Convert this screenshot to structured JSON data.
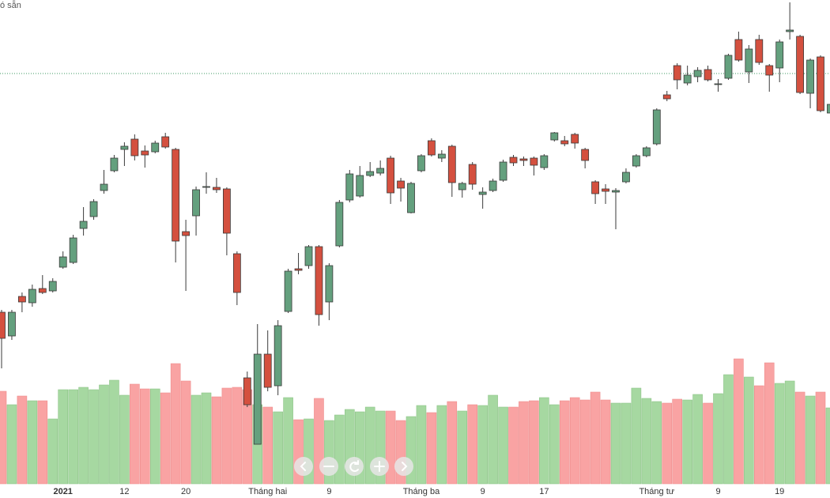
{
  "chart_data": {
    "type": "candlestick",
    "header_text": "ó sẵn",
    "categories": [
      null,
      null,
      null,
      null,
      null,
      null,
      "2021",
      null,
      null,
      null,
      null,
      null,
      "12",
      null,
      null,
      null,
      null,
      null,
      "20",
      null,
      null,
      null,
      null,
      null,
      null,
      null,
      "Tháng hai",
      null,
      null,
      null,
      null,
      null,
      "9",
      null,
      null,
      null,
      null,
      null,
      null,
      null,
      null,
      "Tháng ba",
      null,
      null,
      null,
      null,
      null,
      "9",
      null,
      null,
      null,
      null,
      null,
      "17",
      null,
      null,
      null,
      null,
      null,
      null,
      null,
      null,
      null,
      null,
      "Tháng tư",
      null,
      null,
      null,
      null,
      null,
      "9",
      null,
      null,
      null,
      null,
      null,
      "19",
      null,
      null,
      null,
      null,
      null
    ],
    "open": [
      235,
      205,
      255,
      247,
      265,
      262,
      292,
      298,
      341,
      356,
      389,
      414,
      441,
      454,
      439,
      438,
      457,
      441,
      337,
      357,
      393,
      393,
      391,
      309,
      152,
      68,
      182,
      142,
      236,
      290,
      294,
      318,
      248,
      319,
      377,
      382,
      408,
      411,
      430,
      401,
      361,
      414,
      452,
      430,
      445,
      390,
      422,
      384,
      389,
      402,
      431,
      429,
      430,
      418,
      453,
      452,
      460,
      441,
      400,
      391,
      387,
      400,
      420,
      433,
      448,
      510,
      547,
      525,
      533,
      542,
      523,
      531,
      580,
      539,
      580,
      547,
      544,
      590,
      584,
      512,
      558,
      487
    ],
    "high": [
      238,
      238,
      260,
      270,
      282,
      278,
      312,
      333,
      368,
      378,
      415,
      434,
      450,
      460,
      446,
      452,
      462,
      443,
      352,
      394,
      412,
      405,
      393,
      312,
      160,
      220,
      212,
      225,
      290,
      310,
      320,
      320,
      297,
      377,
      415,
      420,
      425,
      427,
      433,
      405,
      400,
      435,
      455,
      440,
      447,
      400,
      425,
      393,
      404,
      428,
      434,
      432,
      432,
      435,
      463,
      458,
      462,
      443,
      402,
      397,
      392,
      417,
      435,
      445,
      493,
      515,
      550,
      547,
      545,
      547,
      530,
      562,
      590,
      573,
      586,
      549,
      580,
      627,
      586,
      556,
      560,
      500
    ],
    "low": [
      164,
      200,
      235,
      242,
      258,
      260,
      290,
      296,
      332,
      352,
      385,
      412,
      420,
      427,
      418,
      436,
      442,
      298,
      262,
      332,
      385,
      386,
      307,
      244,
      115,
      68,
      135,
      130,
      234,
      283,
      290,
      218,
      225,
      317,
      374,
      380,
      406,
      408,
      372,
      375,
      360,
      412,
      432,
      425,
      381,
      380,
      390,
      366,
      387,
      400,
      420,
      420,
      408,
      415,
      451,
      445,
      442,
      417,
      372,
      372,
      340,
      398,
      418,
      431,
      446,
      502,
      517,
      522,
      526,
      527,
      514,
      529,
      552,
      525,
      548,
      514,
      526,
      580,
      511,
      493,
      488,
      468
    ],
    "close": [
      202,
      235,
      248,
      264,
      260,
      274,
      305,
      329,
      350,
      375,
      397,
      430,
      445,
      433,
      434,
      449,
      444,
      325,
      332,
      390,
      394,
      390,
      335,
      260,
      118,
      182,
      140,
      218,
      287,
      288,
      318,
      232,
      294,
      374,
      410,
      408,
      413,
      417,
      386,
      392,
      398,
      433,
      434,
      435,
      399,
      398,
      397,
      387,
      401,
      425,
      424,
      427,
      421,
      433,
      462,
      448,
      449,
      427,
      385,
      388,
      389,
      412,
      433,
      443,
      491,
      505,
      529,
      535,
      541,
      529,
      524,
      560,
      554,
      568,
      551,
      535,
      577,
      592,
      513,
      554,
      490,
      498
    ],
    "volume": [
      117,
      100,
      111,
      105,
      105,
      82,
      119,
      119,
      122,
      119,
      125,
      131,
      112,
      126,
      120,
      120,
      115,
      152,
      130,
      112,
      115,
      110,
      121,
      122,
      119,
      100,
      97,
      91,
      109,
      81,
      82,
      108,
      80,
      87,
      94,
      91,
      97,
      92,
      92,
      80,
      85,
      99,
      90,
      99,
      104,
      92,
      100,
      99,
      112,
      97,
      97,
      104,
      105,
      109,
      100,
      105,
      109,
      106,
      116,
      106,
      102,
      102,
      121,
      108,
      104,
      102,
      107,
      106,
      113,
      102,
      114,
      138,
      158,
      135,
      124,
      153,
      127,
      130,
      116,
      111,
      116,
      96
    ],
    "ylim": [
      0,
      630
    ],
    "volume_lim": [
      0,
      612
    ],
    "price_line": 537,
    "price_line_color": "#3d9a63",
    "up_color": "#64a07e",
    "down_color": "#d4503f",
    "up_volume_color": "#a6d8a1",
    "down_volume_color": "#f9a3a3",
    "wick_color": "#3a3a3a"
  }
}
